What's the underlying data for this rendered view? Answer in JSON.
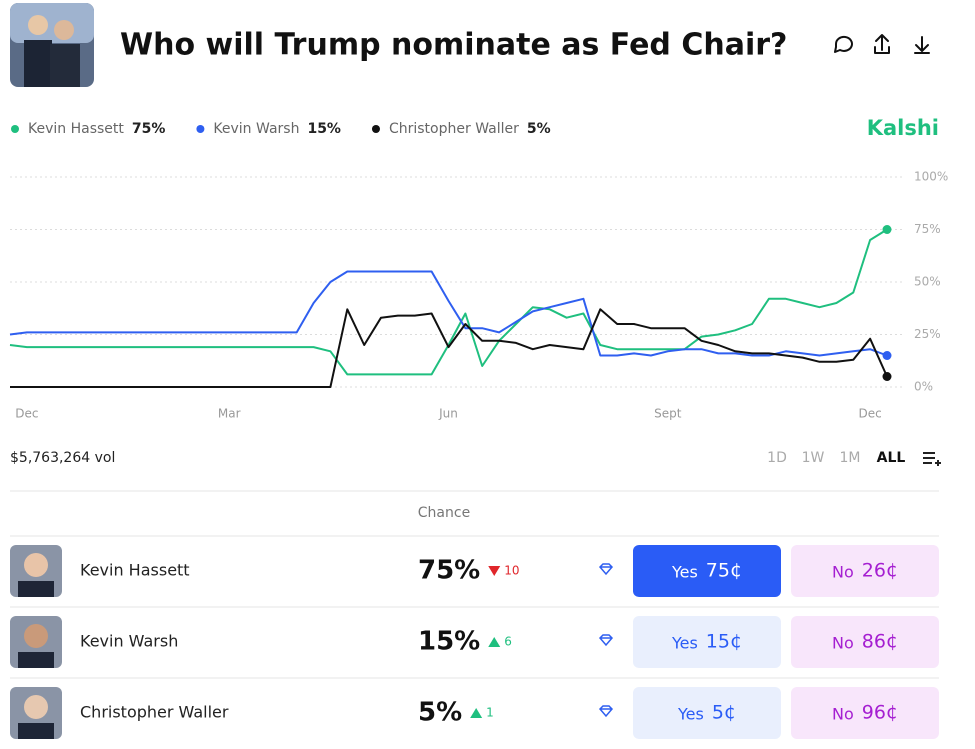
{
  "header": {
    "title": "Who will Trump nominate as Fed Chair?",
    "brand": "Kalshi"
  },
  "chart_data": {
    "type": "line",
    "categories": [
      null,
      "Dec",
      null,
      null,
      null,
      null,
      null,
      null,
      null,
      null,
      null,
      null,
      null,
      "Mar",
      null,
      null,
      null,
      null,
      null,
      null,
      null,
      null,
      null,
      null,
      null,
      null,
      "Jun",
      null,
      null,
      null,
      null,
      null,
      null,
      null,
      null,
      null,
      null,
      null,
      null,
      "Sept",
      null,
      null,
      null,
      null,
      null,
      null,
      null,
      null,
      null,
      null,
      null,
      "Dec",
      null
    ],
    "series": [
      {
        "name": "Kevin Hassett",
        "legend_value": "75%",
        "color": "#1fbf7f",
        "values": [
          20,
          19,
          19,
          19,
          19,
          19,
          19,
          19,
          19,
          19,
          19,
          19,
          19,
          19,
          19,
          19,
          19,
          19,
          19,
          17,
          6,
          6,
          6,
          6,
          6,
          6,
          20,
          35,
          10,
          22,
          30,
          38,
          37,
          33,
          35,
          20,
          18,
          18,
          18,
          18,
          18,
          24,
          25,
          27,
          30,
          42,
          42,
          40,
          38,
          40,
          45,
          70,
          75
        ]
      },
      {
        "name": "Kevin Warsh",
        "legend_value": "15%",
        "color": "#2f5ff0",
        "values": [
          25,
          26,
          26,
          26,
          26,
          26,
          26,
          26,
          26,
          26,
          26,
          26,
          26,
          26,
          26,
          26,
          26,
          26,
          40,
          50,
          55,
          55,
          55,
          55,
          55,
          55,
          41,
          28,
          28,
          26,
          31,
          36,
          38,
          40,
          42,
          15,
          15,
          16,
          15,
          17,
          18,
          18,
          16,
          16,
          15,
          15,
          17,
          16,
          15,
          16,
          17,
          18,
          15
        ]
      },
      {
        "name": "Christopher Waller",
        "legend_value": "5%",
        "color": "#111111",
        "values": [
          0,
          0,
          0,
          0,
          0,
          0,
          0,
          0,
          0,
          0,
          0,
          0,
          0,
          0,
          0,
          0,
          0,
          0,
          0,
          0,
          37,
          20,
          33,
          34,
          34,
          35,
          19,
          30,
          22,
          22,
          21,
          18,
          20,
          19,
          18,
          37,
          30,
          30,
          28,
          28,
          28,
          22,
          20,
          17,
          16,
          16,
          15,
          14,
          12,
          12,
          13,
          23,
          5
        ]
      }
    ],
    "ylim": [
      0,
      100
    ],
    "yticks": [
      {
        "value": 0,
        "label": "0%"
      },
      {
        "value": 25,
        "label": "25%"
      },
      {
        "value": 50,
        "label": "50%"
      },
      {
        "value": 75,
        "label": "75%"
      },
      {
        "value": 100,
        "label": "100%"
      }
    ],
    "grid": true
  },
  "volume": "$5,763,264 vol",
  "ranges": [
    "1D",
    "1W",
    "1M",
    "ALL"
  ],
  "active_range": 3,
  "table": {
    "header": "Chance",
    "rows": [
      {
        "name": "Kevin Hassett",
        "chance": "75%",
        "change": "10",
        "direction": "down",
        "yes": "Yes",
        "yes_price": "75¢",
        "no": "No",
        "no_price": "26¢",
        "highlight": true
      },
      {
        "name": "Kevin Warsh",
        "chance": "15%",
        "change": "6",
        "direction": "up",
        "yes": "Yes",
        "yes_price": "15¢",
        "no": "No",
        "no_price": "86¢",
        "highlight": false
      },
      {
        "name": "Christopher Waller",
        "chance": "5%",
        "change": "1",
        "direction": "up",
        "yes": "Yes",
        "yes_price": "5¢",
        "no": "No",
        "no_price": "96¢",
        "highlight": false
      }
    ]
  }
}
